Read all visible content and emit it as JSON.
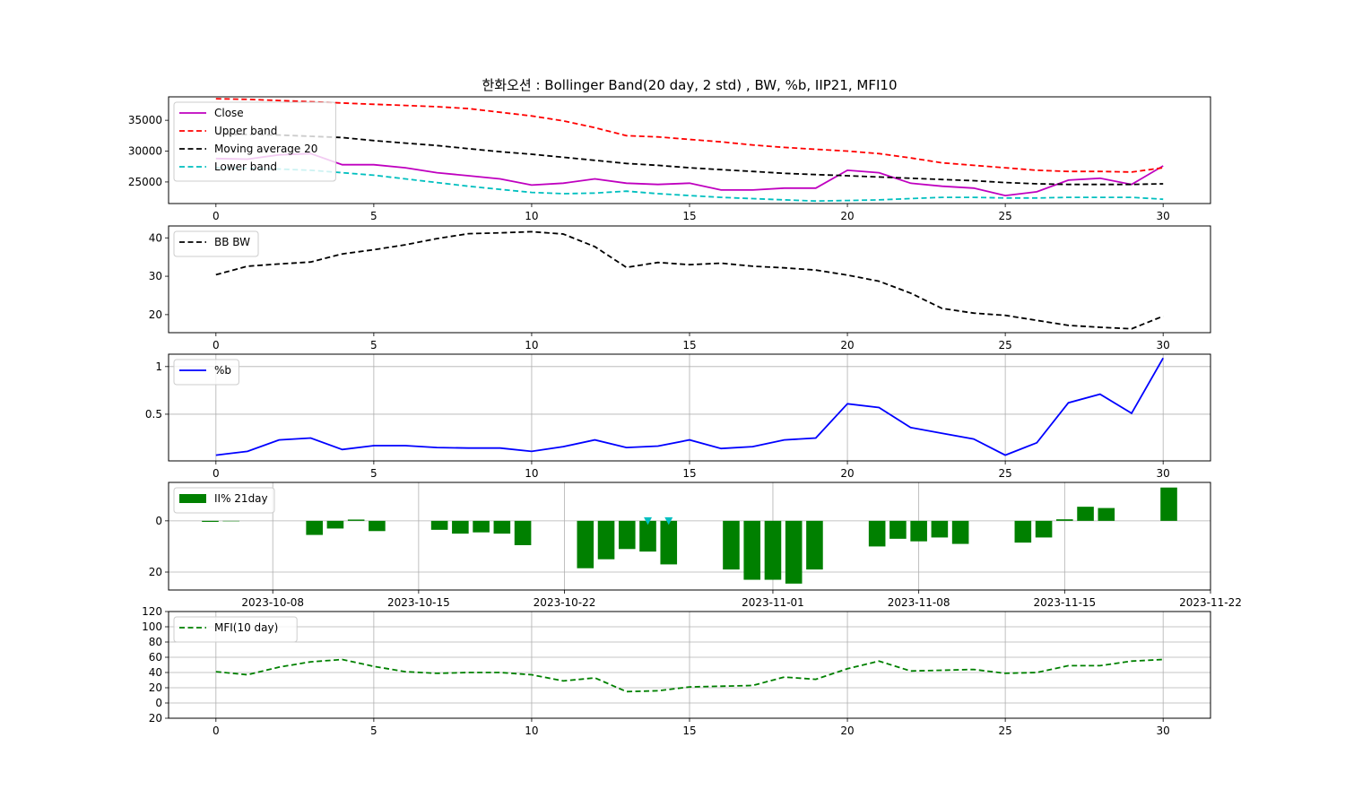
{
  "title": "한화오션 : Bollinger Band(20 day, 2 std) , BW, %b, IIP21, MFI10",
  "colors": {
    "close": "#bf00bf",
    "upper": "#ff0000",
    "ma": "#000000",
    "lower": "#00bfbf",
    "pb": "#0000ff",
    "bar": "#008000",
    "mfi": "#008000",
    "marker": "#00bfbf",
    "grid": "#b0b0b0"
  },
  "chart_data": [
    {
      "type": "line",
      "x": [
        0,
        1,
        2,
        3,
        4,
        5,
        6,
        7,
        8,
        9,
        10,
        11,
        12,
        13,
        14,
        15,
        16,
        17,
        18,
        19,
        20,
        21,
        22,
        23,
        24,
        25,
        26,
        27,
        28,
        29,
        30
      ],
      "xticks": [
        0,
        5,
        10,
        15,
        20,
        25,
        30
      ],
      "xlim": [
        -1.5,
        31.5
      ],
      "ylim": [
        21500,
        38800
      ],
      "yticks": [
        25000,
        30000,
        35000
      ],
      "grid": false,
      "legend_position": "upper-left",
      "series": [
        {
          "name": "Close",
          "style": "solid",
          "color_key": "close",
          "values": [
            28800,
            28700,
            29400,
            29600,
            27800,
            27800,
            27300,
            26500,
            26000,
            25500,
            24500,
            24800,
            25500,
            24800,
            24600,
            24800,
            23700,
            23700,
            24000,
            24000,
            26900,
            26500,
            24800,
            24300,
            24000,
            22800,
            23400,
            25300,
            25600,
            24600,
            27600
          ]
        },
        {
          "name": "Upper band",
          "style": "dashed",
          "color_key": "upper",
          "values": [
            38500,
            38400,
            38200,
            38000,
            37800,
            37600,
            37400,
            37200,
            36900,
            36300,
            35700,
            34900,
            33800,
            32500,
            32300,
            31900,
            31500,
            31000,
            30600,
            30300,
            30000,
            29600,
            28900,
            28100,
            27700,
            27300,
            26900,
            26700,
            26700,
            26600,
            27300
          ]
        },
        {
          "name": "Moving average 20",
          "style": "dashed",
          "color_key": "ma",
          "values": [
            32800,
            32700,
            32600,
            32400,
            32200,
            31700,
            31300,
            30900,
            30400,
            29900,
            29500,
            29000,
            28500,
            28000,
            27700,
            27300,
            27000,
            26700,
            26400,
            26200,
            26000,
            25800,
            25600,
            25400,
            25200,
            24900,
            24700,
            24600,
            24600,
            24600,
            24700
          ]
        },
        {
          "name": "Lower band",
          "style": "dashed",
          "color_key": "lower",
          "values": [
            27300,
            27200,
            27100,
            26900,
            26500,
            26100,
            25500,
            24900,
            24300,
            23800,
            23300,
            23100,
            23200,
            23500,
            23100,
            22800,
            22500,
            22300,
            22100,
            21900,
            22000,
            22100,
            22300,
            22500,
            22500,
            22400,
            22400,
            22500,
            22500,
            22500,
            22200
          ]
        }
      ]
    },
    {
      "type": "line",
      "x": [
        0,
        1,
        2,
        3,
        4,
        5,
        6,
        7,
        8,
        9,
        10,
        11,
        12,
        13,
        14,
        15,
        16,
        17,
        18,
        19,
        20,
        21,
        22,
        23,
        24,
        25,
        26,
        27,
        28,
        29,
        30
      ],
      "xticks": [
        0,
        5,
        10,
        15,
        20,
        25,
        30
      ],
      "xlim": [
        -1.5,
        31.5
      ],
      "ylim": [
        15.3,
        43.1
      ],
      "yticks": [
        20,
        30,
        40
      ],
      "grid": false,
      "legend_position": "upper-left",
      "series": [
        {
          "name": "BB BW",
          "style": "dashed",
          "color_key": "ma",
          "values": [
            30.4,
            32.6,
            33.2,
            33.7,
            35.8,
            36.9,
            38.2,
            39.8,
            41.1,
            41.3,
            41.6,
            41.0,
            37.7,
            32.3,
            33.6,
            33.0,
            33.4,
            32.6,
            32.2,
            31.6,
            30.3,
            28.7,
            25.6,
            21.6,
            20.4,
            19.8,
            18.5,
            17.2,
            16.7,
            16.3,
            19.6
          ]
        }
      ]
    },
    {
      "type": "line",
      "x": [
        0,
        1,
        2,
        3,
        4,
        5,
        6,
        7,
        8,
        9,
        10,
        11,
        12,
        13,
        14,
        15,
        16,
        17,
        18,
        19,
        20,
        21,
        22,
        23,
        24,
        25,
        26,
        27,
        28,
        29,
        30
      ],
      "xticks": [
        0,
        5,
        10,
        15,
        20,
        25,
        30
      ],
      "xlim": [
        -1.5,
        31.5
      ],
      "ylim": [
        0.01,
        1.13
      ],
      "yticks": [
        0.5,
        1.0
      ],
      "grid": true,
      "legend_position": "upper-left",
      "series": [
        {
          "name": "%b",
          "style": "solid",
          "color_key": "pb",
          "values": [
            0.07,
            0.11,
            0.23,
            0.25,
            0.13,
            0.17,
            0.17,
            0.15,
            0.145,
            0.145,
            0.11,
            0.16,
            0.23,
            0.15,
            0.165,
            0.23,
            0.14,
            0.16,
            0.23,
            0.25,
            0.61,
            0.57,
            0.36,
            0.3,
            0.24,
            0.07,
            0.2,
            0.62,
            0.71,
            0.51,
            1.09
          ]
        }
      ]
    },
    {
      "type": "bar",
      "categories": [
        "2023-10-05",
        "2023-10-06",
        "2023-10-10",
        "2023-10-11",
        "2023-10-12",
        "2023-10-13",
        "2023-10-16",
        "2023-10-17",
        "2023-10-18",
        "2023-10-19",
        "2023-10-20",
        "2023-10-23",
        "2023-10-24",
        "2023-10-25",
        "2023-10-26",
        "2023-10-27",
        "2023-10-30",
        "2023-10-31",
        "2023-11-01",
        "2023-11-02",
        "2023-11-03",
        "2023-11-06",
        "2023-11-07",
        "2023-11-08",
        "2023-11-09",
        "2023-11-10",
        "2023-11-13",
        "2023-11-14",
        "2023-11-15",
        "2023-11-16",
        "2023-11-17",
        "2023-11-20"
      ],
      "values": [
        -0.4,
        0,
        -5.5,
        -3.0,
        0.5,
        -4.0,
        -3.5,
        -5.0,
        -4.5,
        -5.0,
        -9.5,
        -18.5,
        -15.0,
        -11.0,
        -12.0,
        -17.0,
        -19.0,
        -23.0,
        -23.0,
        -24.5,
        -19.0,
        -10.0,
        -7.0,
        -8.0,
        -6.5,
        -9.0,
        -8.5,
        -6.5,
        0.6,
        5.5,
        5.0,
        13.0
      ],
      "xticks": [
        "2023-10-08",
        "2023-10-15",
        "2023-10-22",
        "2023-11-01",
        "2023-11-08",
        "2023-11-15",
        "2023-11-22"
      ],
      "tick_labels": [
        "2023-10-08",
        "2023-10-15",
        "2023-10-22",
        "2023-11-01",
        "2023-11-08",
        "2023-11-15",
        "2023-11-22"
      ],
      "xlim": [
        "2023-10-03",
        "2023-11-22"
      ],
      "ylim": [
        -27,
        15
      ],
      "yticks": [
        0,
        -20
      ],
      "ytick_labels": [
        "0",
        "\u000f20"
      ],
      "grid": true,
      "legend_position": "upper-left",
      "series_name": "II% 21day",
      "markers": {
        "shape": "triangle-down",
        "dates": [
          "2023-10-26",
          "2023-10-27"
        ],
        "values": [
          0,
          0
        ]
      }
    },
    {
      "type": "line",
      "x": [
        0,
        1,
        2,
        3,
        4,
        5,
        6,
        7,
        8,
        9,
        10,
        11,
        12,
        13,
        14,
        15,
        16,
        17,
        18,
        19,
        20,
        21,
        22,
        23,
        24,
        25,
        26,
        27,
        28,
        29,
        30
      ],
      "xticks": [
        0,
        5,
        10,
        15,
        20,
        25,
        30
      ],
      "xlim": [
        -1.5,
        31.5
      ],
      "ylim": [
        -20,
        120
      ],
      "yticks": [
        -20,
        0,
        20,
        40,
        60,
        80,
        100,
        120
      ],
      "ytick_labels": [
        "\u000f20",
        "0",
        "20",
        "40",
        "60",
        "80",
        "100",
        "120"
      ],
      "grid": true,
      "legend_position": "upper-left",
      "series": [
        {
          "name": "MFI(10 day)",
          "style": "dashed",
          "color_key": "mfi",
          "values": [
            41,
            37,
            47,
            54,
            57,
            48,
            41,
            39,
            40,
            40,
            37,
            29,
            33,
            15,
            16,
            21,
            22,
            23,
            34,
            31,
            45,
            55,
            42,
            43,
            44,
            39,
            40,
            49,
            49,
            55,
            57
          ]
        }
      ]
    }
  ]
}
